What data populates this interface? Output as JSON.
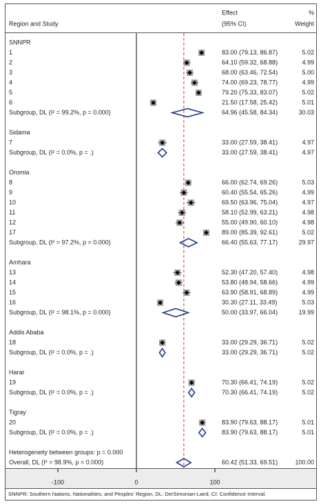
{
  "chart_data": {
    "type": "forest",
    "header": {
      "study": "Region and Study",
      "effect": "Effect",
      "ci": "(95% CI)",
      "pct": "%",
      "weight": "Weight"
    },
    "xlim": [
      -100,
      100
    ],
    "xticks": [
      -100,
      0,
      100
    ],
    "null_line": 0,
    "groups": [
      {
        "name": "SNNPR",
        "studies": [
          {
            "label": "1",
            "effect": 83.0,
            "lower": 79.13,
            "upper": 86.87,
            "text": "83.00 (79.13, 86.87)",
            "weight": "5.02"
          },
          {
            "label": "2",
            "effect": 64.1,
            "lower": 59.32,
            "upper": 68.88,
            "text": "64.10 (59.32, 68.88)",
            "weight": "4.99"
          },
          {
            "label": "3",
            "effect": 68.0,
            "lower": 63.46,
            "upper": 72.54,
            "text": "68.00 (63.46, 72.54)",
            "weight": "5.00"
          },
          {
            "label": "4",
            "effect": 74.0,
            "lower": 69.23,
            "upper": 78.77,
            "text": "74.00 (69.23, 78.77)",
            "weight": "4.99"
          },
          {
            "label": "5",
            "effect": 79.2,
            "lower": 75.33,
            "upper": 83.07,
            "text": "79.20 (75.33, 83.07)",
            "weight": "5.02"
          },
          {
            "label": "6",
            "effect": 21.5,
            "lower": 17.58,
            "upper": 25.42,
            "text": "21.50 (17.58, 25.42)",
            "weight": "5.01"
          }
        ],
        "subgroup": {
          "label": "Subgroup, DL (I² = 99.2%, p = 0.000)",
          "effect": 64.96,
          "lower": 45.58,
          "upper": 84.34,
          "text": "64.96 (45.58, 84.34)",
          "weight": "30.03"
        }
      },
      {
        "name": "Sidama",
        "studies": [
          {
            "label": "7",
            "effect": 33.0,
            "lower": 27.59,
            "upper": 38.41,
            "text": "33.00 (27.59, 38.41)",
            "weight": "4.97"
          }
        ],
        "subgroup": {
          "label": "Subgroup, DL (I² = 0.0%, p = .)",
          "effect": 33.0,
          "lower": 27.59,
          "upper": 38.41,
          "text": "33.00 (27.59, 38.41)",
          "weight": "4.97"
        }
      },
      {
        "name": "Oromia",
        "studies": [
          {
            "label": "8",
            "effect": 66.0,
            "lower": 62.74,
            "upper": 69.26,
            "text": "66.00 (62.74, 69.26)",
            "weight": "5.03"
          },
          {
            "label": "9",
            "effect": 60.4,
            "lower": 55.54,
            "upper": 65.26,
            "text": "60.40 (55.54, 65.26)",
            "weight": "4.99"
          },
          {
            "label": "10",
            "effect": 69.5,
            "lower": 63.96,
            "upper": 75.04,
            "text": "69.50 (63.96, 75.04)",
            "weight": "4.97"
          },
          {
            "label": "11",
            "effect": 58.1,
            "lower": 52.99,
            "upper": 63.21,
            "text": "58.10 (52.99, 63.21)",
            "weight": "4.98"
          },
          {
            "label": "12",
            "effect": 55.0,
            "lower": 49.9,
            "upper": 60.1,
            "text": "55.00 (49.90, 60.10)",
            "weight": "4.98"
          },
          {
            "label": "17",
            "effect": 89.0,
            "lower": 85.39,
            "upper": 92.61,
            "text": "89.00 (85.39, 92.61)",
            "weight": "5.02"
          }
        ],
        "subgroup": {
          "label": "Subgroup, DL (I² = 97.2%, p = 0.000)",
          "effect": 66.4,
          "lower": 55.63,
          "upper": 77.17,
          "text": "66.40 (55.63, 77.17)",
          "weight": "29.97"
        }
      },
      {
        "name": "Amhara",
        "studies": [
          {
            "label": "13",
            "effect": 52.3,
            "lower": 47.2,
            "upper": 57.4,
            "text": "52.30 (47.20, 57.40)",
            "weight": "4.98"
          },
          {
            "label": "14",
            "effect": 53.8,
            "lower": 48.94,
            "upper": 58.66,
            "text": "53.80 (48.94, 58.66)",
            "weight": "4.99"
          },
          {
            "label": "15",
            "effect": 63.9,
            "lower": 58.91,
            "upper": 68.89,
            "text": "63.90 (58.91, 68.89)",
            "weight": "4.99"
          },
          {
            "label": "16",
            "effect": 30.3,
            "lower": 27.11,
            "upper": 33.49,
            "text": "30.30 (27.11, 33.49)",
            "weight": "5.03"
          }
        ],
        "subgroup": {
          "label": "Subgroup, DL (I² = 98.1%, p = 0.000)",
          "effect": 50.0,
          "lower": 33.97,
          "upper": 66.04,
          "text": "50.00 (33.97, 66.04)",
          "weight": "19.99"
        }
      },
      {
        "name": "Addis Ababa",
        "studies": [
          {
            "label": "18",
            "effect": 33.0,
            "lower": 29.29,
            "upper": 36.71,
            "text": "33.00 (29.29, 36.71)",
            "weight": "5.02"
          }
        ],
        "subgroup": {
          "label": "Subgroup, DL (I² = 0.0%, p = .)",
          "effect": 33.0,
          "lower": 29.29,
          "upper": 36.71,
          "text": "33.00 (29.29, 36.71)",
          "weight": "5.02"
        }
      },
      {
        "name": "Harar",
        "studies": [
          {
            "label": "19",
            "effect": 70.3,
            "lower": 66.41,
            "upper": 74.19,
            "text": "70.30 (66.41, 74.19)",
            "weight": "5.02"
          }
        ],
        "subgroup": {
          "label": "Subgroup, DL (I² = 0.0%, p = .)",
          "effect": 70.3,
          "lower": 66.41,
          "upper": 74.19,
          "text": "70.30 (66.41, 74.19)",
          "weight": "5.02"
        }
      },
      {
        "name": "Tigray",
        "studies": [
          {
            "label": "20",
            "effect": 83.9,
            "lower": 79.63,
            "upper": 88.17,
            "text": "83.90 (79.63, 88.17)",
            "weight": "5.01"
          }
        ],
        "subgroup": {
          "label": "Subgroup, DL (I² = 0.0%, p = .)",
          "effect": 83.9,
          "lower": 79.63,
          "upper": 88.17,
          "text": "83.90 (79.63, 88.17)",
          "weight": "5.01"
        }
      }
    ],
    "heterogeneity": "Heterogeneity between groups: p = 0.000",
    "overall": {
      "label": "Overall, DL (I² = 98.9%, p = 0.000)",
      "effect": 60.42,
      "lower": 51.33,
      "upper": 69.51,
      "text": "60.42 (51.33, 69.51)",
      "weight": "100.00"
    },
    "footnote": "SNNPR: Southern Nations, Nationalities, and Peoples' Region, DL: DerSimonian-Laird, CI: Confidence Interval."
  }
}
